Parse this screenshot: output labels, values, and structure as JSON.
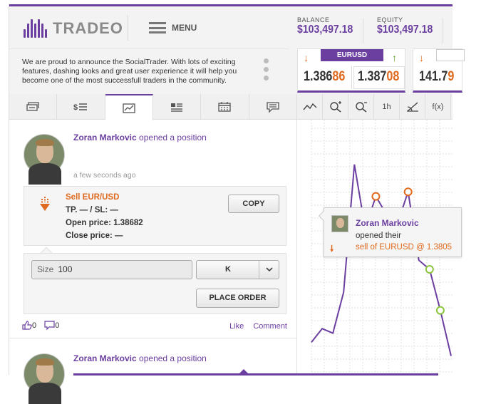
{
  "brand": {
    "name": "TRADEO",
    "color": "#6b3fa0"
  },
  "header": {
    "menu_label": "MENU",
    "balance_label": "BALANCE",
    "balance_value": "$103,497.18",
    "equity_label": "EQUITY",
    "equity_value": "$103,497.18"
  },
  "announcement": {
    "text": "We are proud to announce the SocialTrader. With lots of exciting features, dashing looks and great user experience it will help you become one of the most successfull traders in the community."
  },
  "quotes": {
    "main_pair": "EURUSD",
    "bid_main": "1.386",
    "bid_hl": "86",
    "ask_main": "1.387",
    "ask_hl": "08",
    "second_price_main": "141.7",
    "second_price_hl": "9"
  },
  "tabs": [
    "account-icon",
    "cash-list-icon",
    "chart-icon",
    "news-icon",
    "calendar-icon",
    "chat-icon"
  ],
  "feed": {
    "post1": {
      "user": "Zoran Markovic",
      "action": "opened a position",
      "time": "a few seconds ago",
      "trade_title": "Sell EUR/USD",
      "tp_sl": "TP. — / SL: —",
      "open_price": "Open price: 1.38682",
      "close_price": "Close price: —",
      "copy_label": "COPY",
      "size_label": "Size",
      "size_value": "100",
      "unit_value": "K",
      "place_order_label": "PLACE ORDER",
      "likes": "0",
      "comments": "0",
      "like_label": "Like",
      "comment_label": "Comment"
    },
    "post2": {
      "user": "Zoran Markovic",
      "action": "opened a position"
    }
  },
  "chart_toolbar": {
    "tools": [
      "line-chart-icon",
      "zoom-in-icon",
      "zoom-out-icon",
      "1h",
      "draw-icon",
      "f(x)"
    ]
  },
  "tooltip": {
    "user": "Zoran Markovic",
    "action": "opened their",
    "detail": "sell of EURUSD @ 1.3805"
  },
  "chart_data": {
    "type": "line",
    "series": [
      {
        "values": [
          8,
          14,
          12,
          30,
          86,
          58,
          72,
          64,
          60,
          74,
          44,
          40,
          22,
          2
        ]
      }
    ],
    "markers": {
      "sell_indices": [
        6,
        8,
        9
      ],
      "buy_indices": [
        11,
        12
      ],
      "sell_color": "#e06a1f",
      "buy_color": "#8cc63f"
    },
    "ylim": [
      0,
      100
    ],
    "grid": true,
    "line_color": "#6b3fa0"
  }
}
